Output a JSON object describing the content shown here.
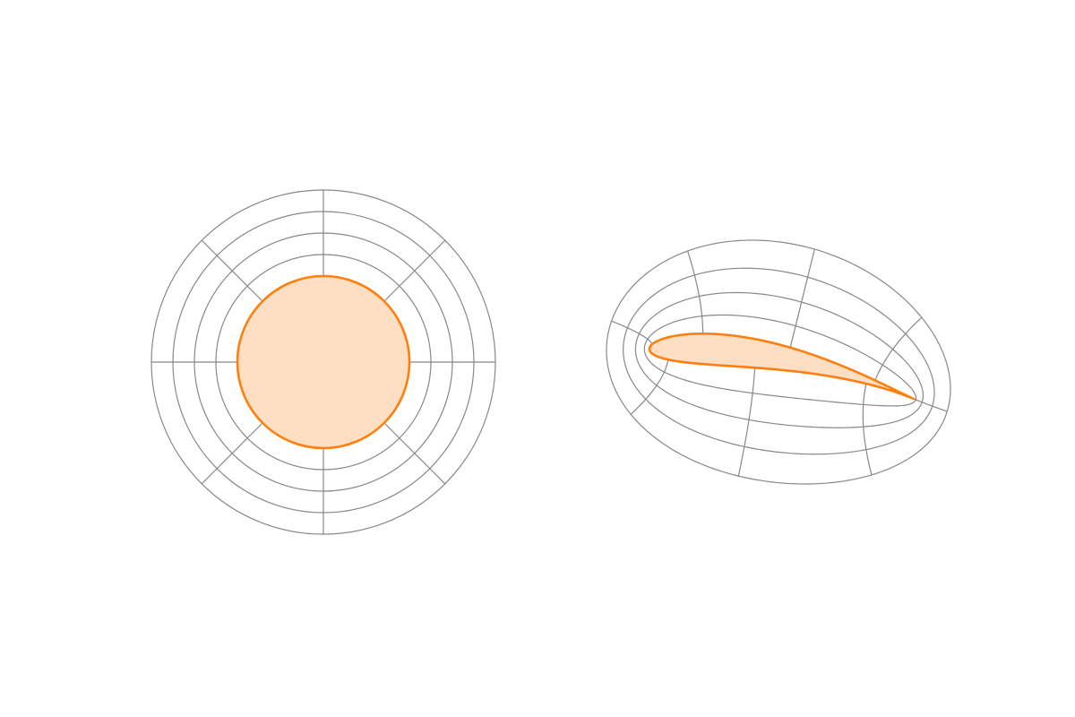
{
  "figure": {
    "left_panel": {
      "name": "circle-polar-grid",
      "shape": "circle",
      "ring_count": 4,
      "spoke_count": 8
    },
    "right_panel": {
      "name": "airfoil-mapped-grid",
      "shape": "airfoil",
      "ring_count": 4,
      "spoke_count": 8
    }
  },
  "colors": {
    "background": "#ffffff",
    "grid": "#888888",
    "shape_stroke": "#ff7f0e",
    "shape_fill": "#ffdfc3"
  }
}
